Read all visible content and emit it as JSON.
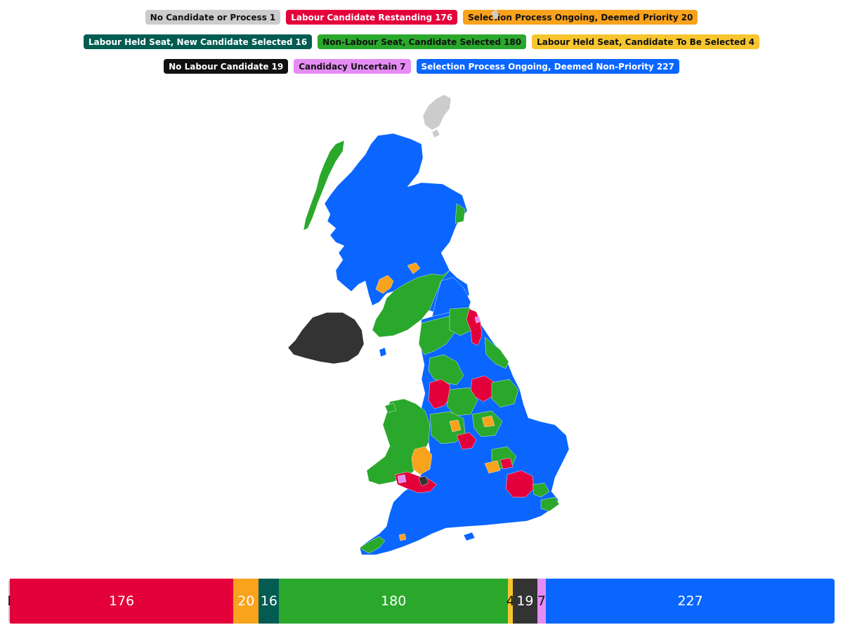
{
  "categories": [
    {
      "key": "none",
      "label": "No Candidate or Process",
      "count": 1,
      "color": "#cccccc",
      "text_color": "#111111"
    },
    {
      "key": "restanding",
      "label": "Labour Candidate Restanding",
      "count": 176,
      "color": "#e4003b",
      "text_color": "#ffffff"
    },
    {
      "key": "priority",
      "label": "Selection Process Ongoing, Deemed Priority",
      "count": 20,
      "color": "#f9a21c",
      "text_color": "#111111"
    },
    {
      "key": "held_new",
      "label": "Labour Held Seat, New Candidate Selected",
      "count": 16,
      "color": "#035c51",
      "text_color": "#ffffff"
    },
    {
      "key": "nonlab_selected",
      "label": "Non-Labour Seat, Candidate Selected",
      "count": 180,
      "color": "#2aa82c",
      "text_color": "#111111"
    },
    {
      "key": "held_tbs",
      "label": "Labour Held Seat, Candidate To Be Selected",
      "count": 4,
      "color": "#f7c52e",
      "text_color": "#111111"
    },
    {
      "key": "no_candidate",
      "label": "No Labour Candidate",
      "count": 19,
      "color": "#111111",
      "text_color": "#ffffff"
    },
    {
      "key": "uncertain",
      "label": "Candidacy Uncertain",
      "count": 7,
      "color": "#e58cf4",
      "text_color": "#111111"
    },
    {
      "key": "non_priority",
      "label": "Selection Process Ongoing, Deemed Non-Priority",
      "count": 227,
      "color": "#0a66ff",
      "text_color": "#ffffff"
    }
  ],
  "bar_colors": {
    "none": "#cccccc",
    "restanding": "#e4003b",
    "priority": "#f9a21c",
    "held_new": "#035c51",
    "nonlab_selected": "#2aa82c",
    "held_tbs": "#f7c52e",
    "no_candidate": "#333333",
    "uncertain": "#e58cf4",
    "non_priority": "#0a66ff"
  },
  "bar_text_colors": {
    "none": "#111111",
    "held_tbs": "#111111",
    "uncertain": "#111111"
  },
  "map_colors": {
    "blue": "#0a66ff",
    "green": "#2aa82c",
    "red": "#e4003b",
    "orange": "#f9a21c",
    "dark": "#333333",
    "grey": "#cccccc",
    "teal": "#035c51",
    "pink": "#e58cf4"
  }
}
